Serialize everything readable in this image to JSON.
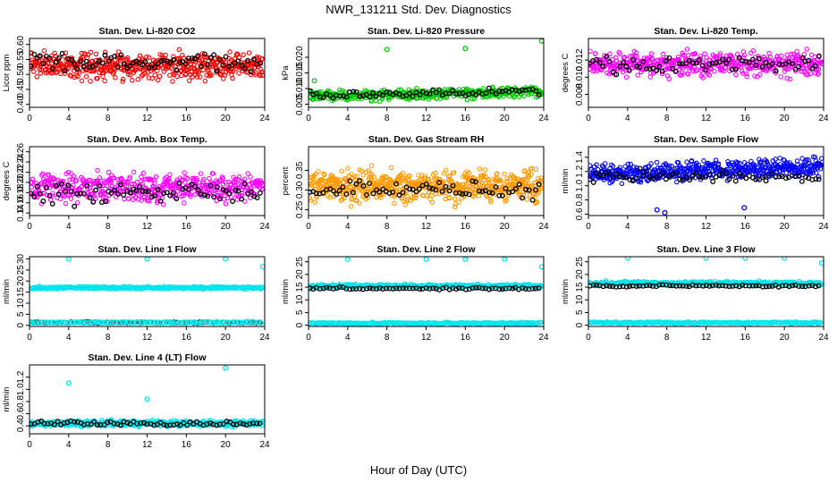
{
  "figure": {
    "title": "NWR_131211  Std. Dev. Diagnostics",
    "xlabel": "Hour of Day (UTC)"
  },
  "chart_data": [
    {
      "type": "scatter",
      "title": "Stan. Dev. Li-820 CO2",
      "ylabel": "Licor ppm",
      "xlim": [
        0,
        24
      ],
      "ylim": [
        0.39,
        0.62
      ],
      "xticks": [
        "0",
        "4",
        "8",
        "12",
        "16",
        "20",
        "24"
      ],
      "yticks": [
        "0.40",
        "0.45",
        "0.50",
        "0.55",
        "0.60"
      ],
      "series": [
        {
          "color": "#ff0000",
          "n": 520,
          "center": 0.53,
          "spread": 0.04,
          "dense": true
        },
        {
          "color": "#000000",
          "n": 75,
          "center": 0.54,
          "spread": 0.025
        }
      ]
    },
    {
      "type": "scatter",
      "title": "Stan. Dev. Li-820 Pressure",
      "ylabel": "kPa",
      "xlim": [
        0,
        24
      ],
      "ylim": [
        0.004,
        0.026
      ],
      "xticks": [
        "0",
        "4",
        "8",
        "12",
        "16",
        "20",
        "24"
      ],
      "yticks": [
        "0.005",
        "0.010",
        "0.015",
        "0.020"
      ],
      "series": [
        {
          "color": "#00cc00",
          "n": 460,
          "center": 0.0075,
          "spread": 0.0015,
          "trend": 0.0015,
          "dense": true
        },
        {
          "color": "#000000",
          "n": 70,
          "center": 0.0078,
          "spread": 0.001,
          "trend": 0.0012
        },
        {
          "color": "#00cc00",
          "x": [
            0.6,
            8,
            16,
            23.8
          ],
          "y": [
            0.0125,
            0.0225,
            0.0228,
            0.0252
          ]
        }
      ]
    },
    {
      "type": "scatter",
      "title": "Stan. Dev. Li-820 Temp.",
      "ylabel": "degrees C",
      "xlim": [
        0,
        24
      ],
      "ylim": [
        0.0065,
        0.0145
      ],
      "xticks": [
        "0",
        "4",
        "8",
        "12",
        "16",
        "20",
        "24"
      ],
      "yticks": [
        "0.008",
        "0.010",
        "0.012"
      ],
      "series": [
        {
          "color": "#ff00ff",
          "n": 480,
          "center": 0.0115,
          "spread": 0.0012,
          "dense": true
        },
        {
          "color": "#000000",
          "n": 70,
          "center": 0.0115,
          "spread": 0.0009
        }
      ]
    },
    {
      "type": "scatter",
      "title": "Stan. Dev. Amb. Box Temp.",
      "ylabel": "degrees C",
      "xlim": [
        0,
        24
      ],
      "ylim": [
        0.135,
        0.27
      ],
      "xticks": [
        "0",
        "4",
        "8",
        "12",
        "16",
        "20",
        "24"
      ],
      "yticks": [
        "0.14",
        "0.16",
        "0.18",
        "0.20",
        "0.22",
        "0.24",
        "0.26"
      ],
      "series": [
        {
          "color": "#ff00ff",
          "n": 500,
          "center": 0.19,
          "spread": 0.025,
          "dense": true
        },
        {
          "color": "#000000",
          "n": 75,
          "center": 0.18,
          "spread": 0.02
        }
      ]
    },
    {
      "type": "scatter",
      "title": "Stan. Dev. Gas Stream RH",
      "ylabel": "percent",
      "xlim": [
        0,
        24
      ],
      "ylim": [
        0.235,
        0.41
      ],
      "xticks": [
        "0",
        "4",
        "8",
        "12",
        "16",
        "20",
        "24"
      ],
      "yticks": [
        "0.25",
        "0.30",
        "0.35"
      ],
      "series": [
        {
          "color": "#ff9900",
          "n": 620,
          "center": 0.31,
          "spread": 0.035,
          "dense": true
        },
        {
          "color": "#000000",
          "n": 70,
          "center": 0.3,
          "spread": 0.02
        }
      ]
    },
    {
      "type": "scatter",
      "title": "Stan. Dev. Sample Flow",
      "ylabel": "ml/min",
      "xlim": [
        0,
        24
      ],
      "ylim": [
        0.58,
        1.55
      ],
      "xticks": [
        "0",
        "4",
        "8",
        "12",
        "16",
        "20",
        "24"
      ],
      "yticks": [
        "0.6",
        "0.8",
        "1.0",
        "1.2",
        "1.4"
      ],
      "series": [
        {
          "color": "#0000ff",
          "n": 520,
          "center": 1.16,
          "spread": 0.12,
          "trend": 0.1,
          "dense": true
        },
        {
          "color": "#000000",
          "n": 70,
          "center": 1.13,
          "spread": 0.08
        },
        {
          "color": "#0000ff",
          "x": [
            7,
            7.8,
            15.9
          ],
          "y": [
            0.66,
            0.62,
            0.69
          ]
        }
      ]
    },
    {
      "type": "scatter",
      "title": "Stan. Dev. Line 1 Flow",
      "ylabel": "ml/min",
      "xlim": [
        0,
        24
      ],
      "ylim": [
        -0.5,
        31
      ],
      "xticks": [
        "0",
        "4",
        "8",
        "12",
        "16",
        "20",
        "24"
      ],
      "yticks": [
        "0",
        "5",
        "10",
        "15",
        "20",
        "25",
        "30"
      ],
      "series": [
        {
          "color": "#00e5ee",
          "n": 400,
          "center": 17,
          "spread": 0.5,
          "dense": true
        },
        {
          "color": "#000000",
          "n": 70,
          "center": 1.3,
          "spread": 0.2
        },
        {
          "color": "#00e5ee",
          "n": 120,
          "center": 1.3,
          "spread": 0.3
        },
        {
          "color": "#00e5ee",
          "x": [
            4,
            12,
            20,
            23.8
          ],
          "y": [
            30,
            30,
            30,
            26.5
          ]
        }
      ]
    },
    {
      "type": "scatter",
      "title": "Stan. Dev. Line 2 Flow",
      "ylabel": "ml/min",
      "xlim": [
        0,
        24
      ],
      "ylim": [
        -0.5,
        27
      ],
      "xticks": [
        "0",
        "4",
        "8",
        "12",
        "16",
        "20",
        "24"
      ],
      "yticks": [
        "0",
        "5",
        "10",
        "15",
        "20",
        "25"
      ],
      "series": [
        {
          "color": "#00e5ee",
          "n": 400,
          "center": 15.5,
          "spread": 0.6,
          "dense": true
        },
        {
          "color": "#000000",
          "n": 70,
          "center": 14.5,
          "spread": 0.4
        },
        {
          "color": "#00e5ee",
          "n": 160,
          "center": 0.8,
          "spread": 0.3
        },
        {
          "color": "#00e5ee",
          "x": [
            4,
            12,
            16,
            20,
            23.8
          ],
          "y": [
            26,
            26,
            26,
            26,
            23
          ]
        }
      ]
    },
    {
      "type": "scatter",
      "title": "Stan. Dev. Line 3 Flow",
      "ylabel": "ml/min",
      "xlim": [
        0,
        24
      ],
      "ylim": [
        -0.5,
        27
      ],
      "xticks": [
        "0",
        "4",
        "8",
        "12",
        "16",
        "20",
        "24"
      ],
      "yticks": [
        "0",
        "5",
        "10",
        "15",
        "20",
        "25"
      ],
      "series": [
        {
          "color": "#00e5ee",
          "n": 400,
          "center": 16.5,
          "spread": 0.7,
          "dense": true
        },
        {
          "color": "#000000",
          "n": 70,
          "center": 15.5,
          "spread": 0.4
        },
        {
          "color": "#00e5ee",
          "n": 160,
          "center": 1.0,
          "spread": 0.3
        },
        {
          "color": "#00e5ee",
          "x": [
            4,
            12,
            16,
            20,
            23.8
          ],
          "y": [
            26.5,
            26.5,
            26.5,
            26.5,
            24.5
          ]
        }
      ]
    },
    {
      "type": "scatter",
      "title": "Stan. Dev. Line 4 (LT) Flow",
      "ylabel": "ml/min",
      "xlim": [
        0,
        24
      ],
      "ylim": [
        0.27,
        1.4
      ],
      "xticks": [
        "0",
        "4",
        "8",
        "12",
        "16",
        "20",
        "24"
      ],
      "yticks": [
        "0.4",
        "0.6",
        "0.8",
        "1.0",
        "1.2"
      ],
      "series": [
        {
          "color": "#00e5ee",
          "n": 460,
          "center": 0.44,
          "spread": 0.045,
          "dense": true
        },
        {
          "color": "#000000",
          "n": 70,
          "center": 0.44,
          "spread": 0.035
        },
        {
          "color": "#00e5ee",
          "x": [
            4,
            12,
            20
          ],
          "y": [
            1.1,
            0.84,
            1.35
          ]
        }
      ]
    }
  ]
}
